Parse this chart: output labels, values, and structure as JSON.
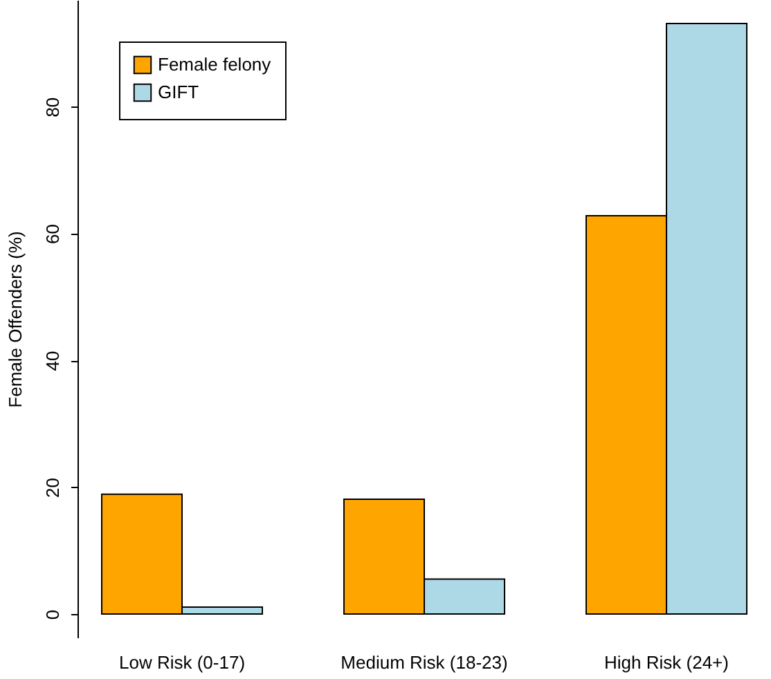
{
  "chart_data": {
    "type": "bar",
    "ylabel": "Female Offenders (%)",
    "categories": [
      "Low Risk (0-17)",
      "Medium Risk (18-23)",
      "High Risk (24+)"
    ],
    "series": [
      {
        "name": "Female felony",
        "color": "#ffa500",
        "values": [
          18.9,
          18.1,
          62.8
        ]
      },
      {
        "name": "GIFT",
        "color": "#add8e6",
        "values": [
          1.1,
          5.5,
          93.1
        ]
      }
    ],
    "ylim": [
      -3.7,
      96.8
    ],
    "yticks": [
      0,
      20,
      40,
      60,
      80
    ],
    "grid": false,
    "legend": "top left"
  }
}
